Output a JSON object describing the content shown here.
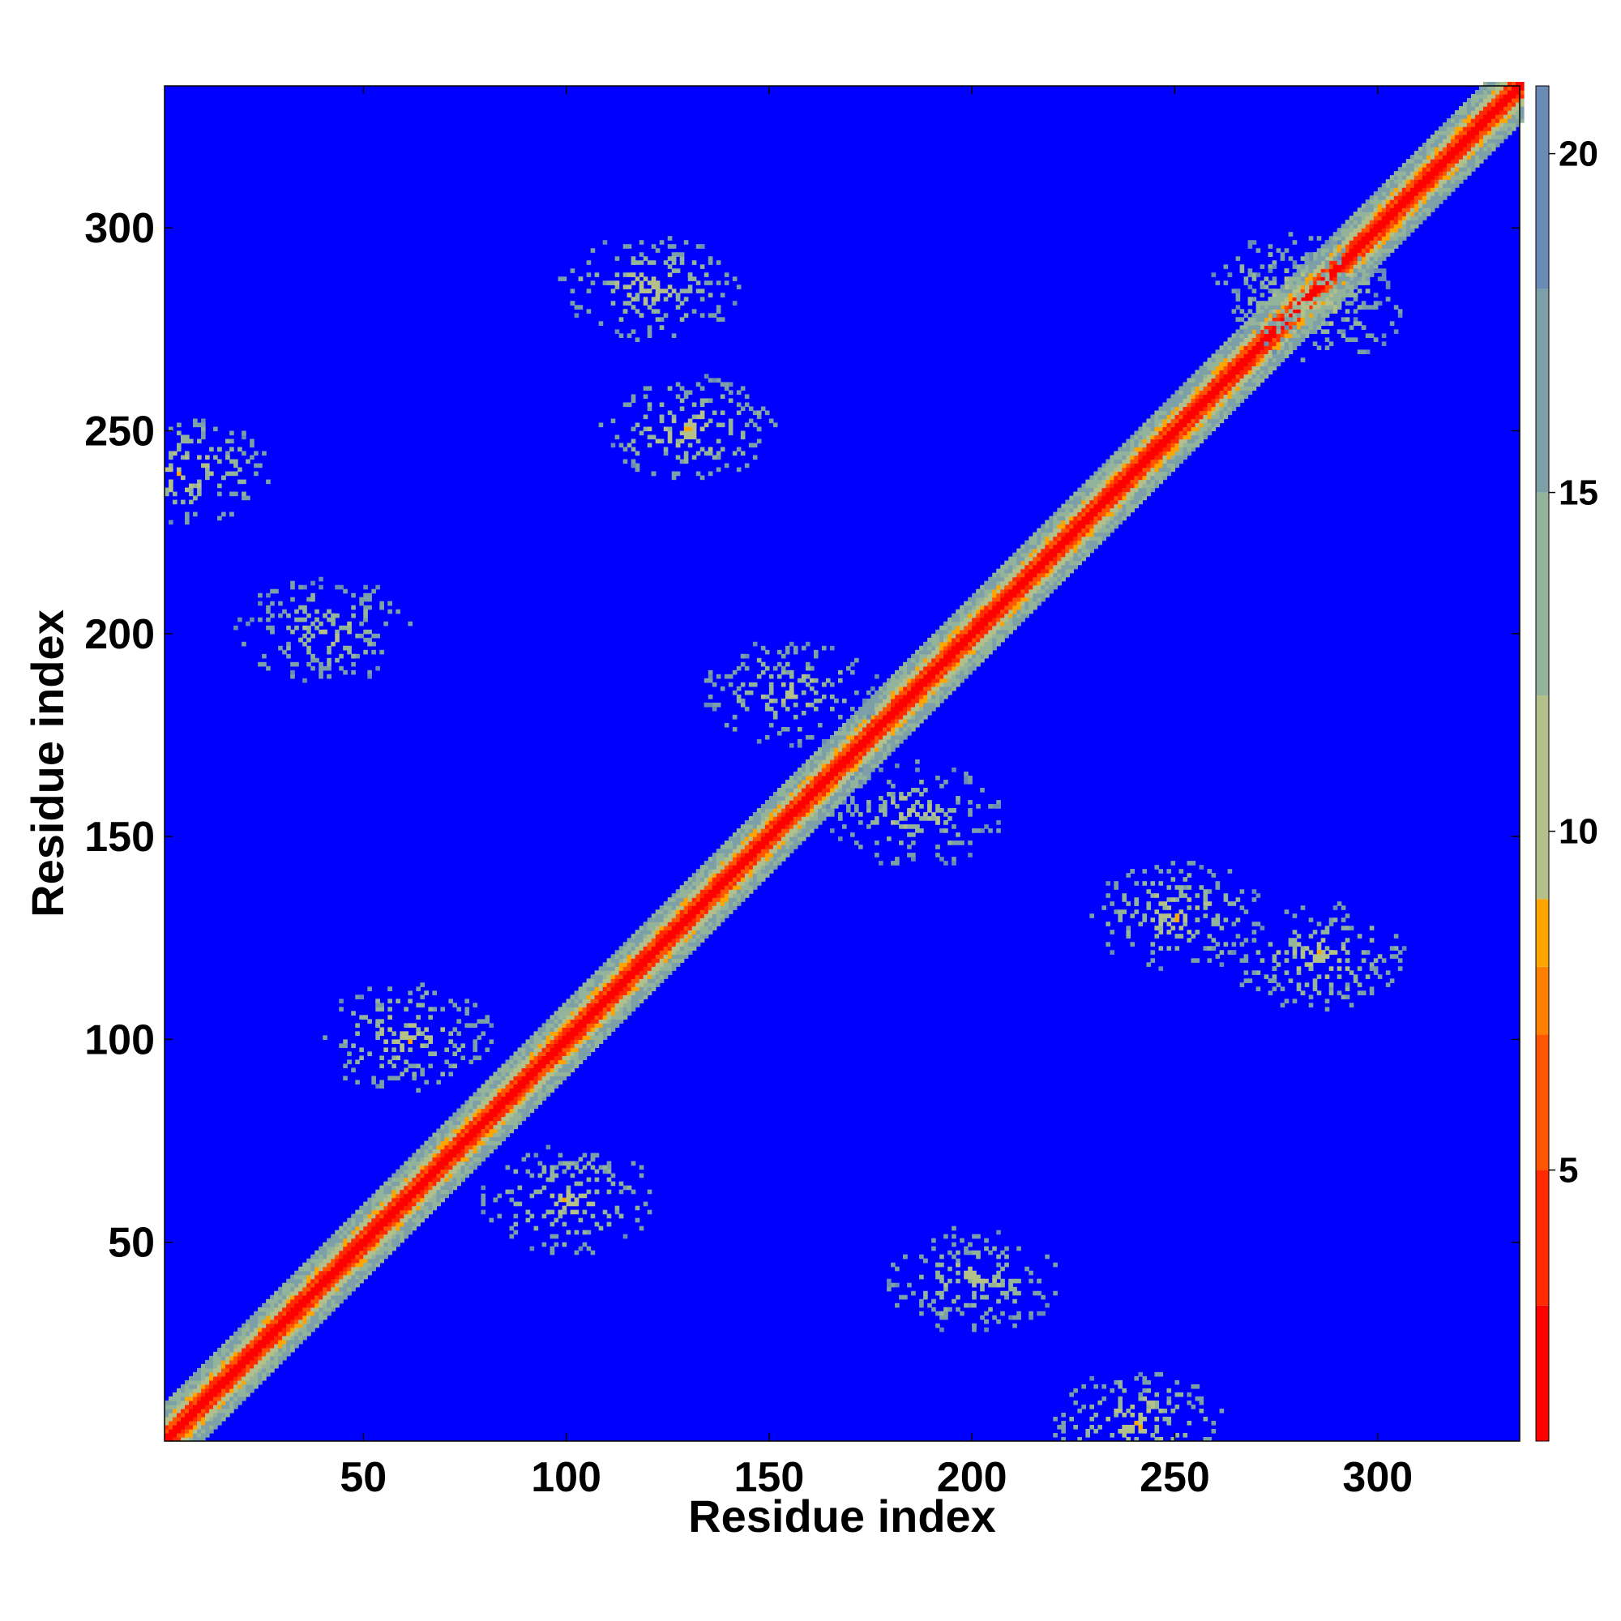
{
  "chart_data": {
    "type": "heatmap",
    "title": "",
    "xlabel": "Residue index",
    "ylabel": "Residue index",
    "n_residues": 335,
    "xlim": [
      1,
      335
    ],
    "ylim": [
      1,
      335
    ],
    "x_ticks": [
      50,
      100,
      150,
      200,
      250,
      300
    ],
    "y_ticks": [
      50,
      100,
      150,
      200,
      250,
      300
    ],
    "colorbar": {
      "ticks": [
        5,
        10,
        15,
        20
      ],
      "range": [
        1,
        21
      ],
      "colors": [
        "#ff0000",
        "#ff2a00",
        "#ff5500",
        "#ff7f00",
        "#ffa500",
        "#b4c08a",
        "#93b49a",
        "#7da0a8",
        "#6a8cb4",
        "#0000ff"
      ],
      "color_stops": [
        1,
        3,
        5,
        7,
        8,
        9,
        12,
        15,
        18,
        21
      ]
    },
    "diagonal_value": 1.5,
    "background_value": 21,
    "features": [
      {
        "x": 155,
        "y": 185,
        "value": 9
      },
      {
        "x": 240,
        "y": 5,
        "value": 8
      },
      {
        "x": 280,
        "y": 285,
        "value": 9
      },
      {
        "x": 120,
        "y": 285,
        "value": 8
      },
      {
        "x": 40,
        "y": 200,
        "value": 9
      },
      {
        "x": 250,
        "y": 130,
        "value": 8
      },
      {
        "x": 100,
        "y": 60,
        "value": 8
      }
    ],
    "grid": false,
    "legend": "colorbar-right"
  }
}
